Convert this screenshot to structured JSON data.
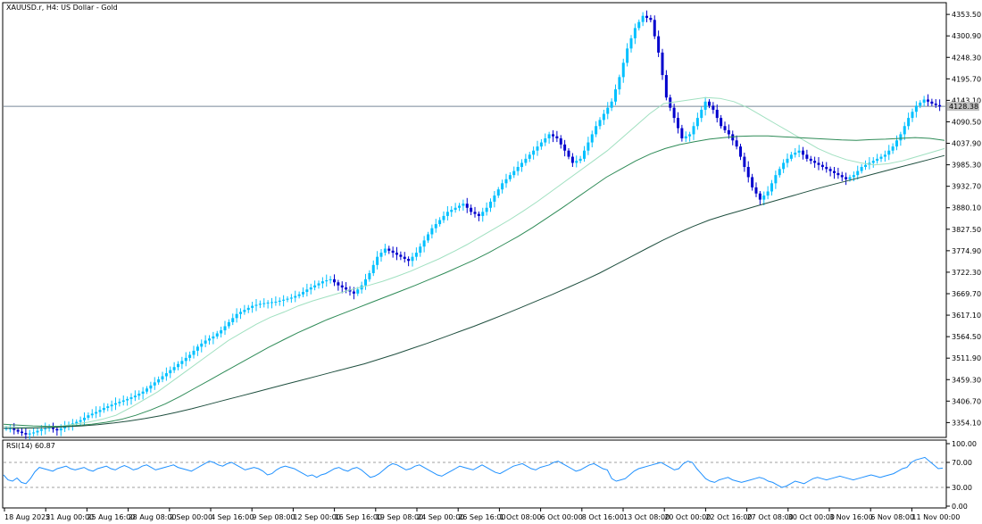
{
  "header": {
    "symbol_title": "XAUUSD.r, H4:  US Dollar - Gold"
  },
  "rsi": {
    "label": "RSI(14) 60.87",
    "ticks": [
      "100.00",
      "70.00",
      "30.00",
      "0.00"
    ],
    "tick_values": [
      100,
      70,
      30,
      0
    ],
    "levels": [
      70,
      30
    ],
    "values": [
      50,
      42,
      40,
      45,
      38,
      36,
      44,
      55,
      62,
      60,
      58,
      56,
      60,
      62,
      64,
      60,
      58,
      60,
      62,
      58,
      56,
      60,
      62,
      64,
      60,
      58,
      62,
      65,
      62,
      58,
      60,
      64,
      66,
      62,
      58,
      60,
      62,
      64,
      66,
      62,
      60,
      58,
      56,
      60,
      64,
      68,
      72,
      70,
      66,
      64,
      68,
      70,
      66,
      62,
      58,
      60,
      62,
      60,
      56,
      50,
      52,
      58,
      62,
      64,
      62,
      60,
      56,
      52,
      48,
      50,
      46,
      50,
      52,
      56,
      60,
      62,
      58,
      56,
      60,
      62,
      58,
      52,
      46,
      48,
      52,
      58,
      64,
      68,
      66,
      62,
      58,
      60,
      64,
      66,
      62,
      58,
      54,
      50,
      48,
      52,
      56,
      60,
      64,
      62,
      60,
      58,
      62,
      66,
      62,
      58,
      54,
      52,
      56,
      60,
      64,
      66,
      68,
      64,
      60,
      58,
      62,
      64,
      66,
      70,
      72,
      68,
      64,
      60,
      56,
      58,
      62,
      66,
      68,
      64,
      60,
      58,
      44,
      40,
      42,
      44,
      50,
      56,
      60,
      62,
      64,
      66,
      68,
      70,
      66,
      62,
      58,
      60,
      68,
      72,
      70,
      60,
      52,
      44,
      40,
      38,
      42,
      44,
      46,
      42,
      40,
      38,
      40,
      42,
      44,
      46,
      44,
      40,
      38,
      34,
      30,
      32,
      36,
      40,
      38,
      36,
      40,
      44,
      46,
      44,
      42,
      44,
      46,
      48,
      46,
      44,
      42,
      44,
      46,
      48,
      50,
      48,
      46,
      48,
      50,
      52,
      56,
      60,
      62,
      70,
      74,
      76,
      78,
      72,
      66,
      60,
      60.87
    ],
    "color": "#1e90ff"
  },
  "price_axis": {
    "ticks": [
      "4353.50",
      "4300.90",
      "4248.30",
      "4195.70",
      "4143.10",
      "4090.50",
      "4037.90",
      "3985.30",
      "3932.70",
      "3880.10",
      "3827.50",
      "3774.90",
      "3722.30",
      "3669.70",
      "3617.10",
      "3564.50",
      "3511.90",
      "3459.30",
      "3406.70",
      "3354.10"
    ],
    "current_price_label": "4128.38"
  },
  "time_axis": {
    "labels": [
      "18 Aug 2025",
      "21 Aug 00:00",
      "25 Aug 16:00",
      "28 Aug 08:00",
      "2 Sep 00:00",
      "4 Sep 16:00",
      "9 Sep 08:00",
      "12 Sep 00:00",
      "16 Sep 16:00",
      "19 Sep 08:00",
      "24 Sep 00:00",
      "26 Sep 16:00",
      "1 Oct 08:00",
      "6 Oct 00:00",
      "8 Oct 16:00",
      "13 Oct 08:00",
      "20 Oct 00:00",
      "22 Oct 16:00",
      "27 Oct 08:00",
      "30 Oct 00:00",
      "3 Nov 16:00",
      "6 Nov 08:00",
      "11 Nov 00:00"
    ]
  },
  "colors": {
    "bull_candle": "#00c0ff",
    "bear_candle": "#0000cd",
    "ma_fast": "#a0e0c0",
    "ma_mid": "#2e8b57",
    "ma_slow": "#1f4f3f",
    "grid_price_line": "#778899"
  },
  "chart_data": {
    "type": "line",
    "title": "XAUUSD.r, H4:  US Dollar - Gold",
    "ylim": [
      3320,
      4380
    ],
    "current_price": 4128.38,
    "series": [
      {
        "values": [
          3340,
          3332,
          3325,
          3330,
          3338,
          3342,
          3335,
          3345,
          3352,
          3360,
          3372,
          3380,
          3390,
          3398,
          3405,
          3412,
          3420,
          3430,
          3445,
          3460,
          3475,
          3490,
          3505,
          3520,
          3540,
          3555,
          3565,
          3580,
          3600,
          3620,
          3630,
          3640,
          3645,
          3648,
          3650,
          3655,
          3660,
          3668,
          3680,
          3690,
          3700,
          3705,
          3690,
          3680,
          3670,
          3690,
          3720,
          3760,
          3780,
          3770,
          3760,
          3750,
          3770,
          3800,
          3830,
          3850,
          3870,
          3880,
          3890,
          3870,
          3860,
          3880,
          3910,
          3940,
          3960,
          3980,
          4000,
          4020,
          4040,
          4060,
          4050,
          4020,
          3990,
          4000,
          4040,
          4080,
          4110,
          4140,
          4200,
          4270,
          4320,
          4350,
          4340,
          4260,
          4150,
          4100,
          4050,
          4060,
          4100,
          4140,
          4120,
          4080,
          4060,
          4030,
          3980,
          3930,
          3900,
          3920,
          3960,
          3990,
          4010,
          4020,
          4000,
          3990,
          3980,
          3970,
          3960,
          3950,
          3960,
          3980,
          3990,
          4000,
          4010,
          4030,
          4060,
          4100,
          4130,
          4145,
          4135,
          4128
        ],
        "color": "#0000cd"
      },
      {
        "values": [
          3345,
          3343,
          3342,
          3342,
          3345,
          3350,
          3355,
          3362,
          3372,
          3390,
          3410,
          3430,
          3455,
          3480,
          3505,
          3530,
          3555,
          3575,
          3595,
          3612,
          3625,
          3640,
          3652,
          3662,
          3672,
          3682,
          3690,
          3700,
          3712,
          3725,
          3740,
          3755,
          3772,
          3790,
          3810,
          3830,
          3850,
          3872,
          3895,
          3920,
          3945,
          3970,
          3995,
          4020,
          4050,
          4080,
          4110,
          4135,
          4140,
          4145,
          4150,
          4148,
          4140,
          4125,
          4105,
          4085,
          4065,
          4045,
          4025,
          4010,
          3998,
          3990,
          3985,
          3988,
          3995,
          4005,
          4015,
          4025
        ],
        "color": "#a0e0c0"
      },
      {
        "values": [
          3350,
          3348,
          3346,
          3345,
          3345,
          3347,
          3350,
          3355,
          3362,
          3372,
          3385,
          3400,
          3418,
          3438,
          3458,
          3478,
          3498,
          3518,
          3538,
          3556,
          3574,
          3590,
          3606,
          3620,
          3634,
          3648,
          3662,
          3676,
          3690,
          3705,
          3720,
          3736,
          3752,
          3770,
          3790,
          3810,
          3832,
          3856,
          3880,
          3905,
          3930,
          3955,
          3975,
          3995,
          4012,
          4025,
          4035,
          4042,
          4048,
          4052,
          4055,
          4056,
          4056,
          4054,
          4052,
          4050,
          4048,
          4046,
          4045,
          4047,
          4048,
          4050,
          4052,
          4050,
          4045
        ],
        "color": "#2e8b57"
      },
      {
        "values": [
          3340,
          3340,
          3341,
          3342,
          3344,
          3346,
          3349,
          3353,
          3358,
          3364,
          3371,
          3379,
          3388,
          3398,
          3408,
          3418,
          3428,
          3438,
          3448,
          3458,
          3468,
          3478,
          3488,
          3498,
          3510,
          3522,
          3535,
          3548,
          3562,
          3576,
          3590,
          3605,
          3620,
          3636,
          3652,
          3668,
          3685,
          3702,
          3720,
          3740,
          3760,
          3780,
          3800,
          3818,
          3835,
          3850,
          3862,
          3873,
          3884,
          3895,
          3906,
          3917,
          3928,
          3938,
          3948,
          3958,
          3968,
          3978,
          3988,
          3998,
          4008
        ],
        "color": "#1f4f3f"
      }
    ]
  }
}
